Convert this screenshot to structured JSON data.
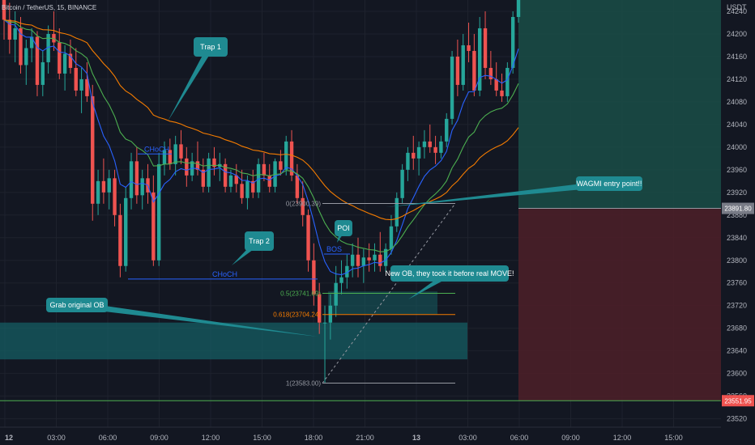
{
  "header": {
    "symbol_title": "Bitcoin / TetherUS, 15, BINANCE",
    "currency": "USDT"
  },
  "chart_data": {
    "type": "candlestick",
    "y_ticks": [
      24240,
      24200,
      24160,
      24120,
      24080,
      24040,
      24000,
      23960,
      23920,
      23880,
      23840,
      23800,
      23760,
      23720,
      23680,
      23640,
      23600,
      23560,
      23520
    ],
    "ylim": [
      23508,
      24260
    ],
    "x_ticks": [
      "12",
      "03:00",
      "06:00",
      "09:00",
      "12:00",
      "15:00",
      "18:00",
      "21:00",
      "13",
      "03:00",
      "06:00",
      "09:00",
      "12:00",
      "15:00"
    ],
    "x_tick_units": [
      0,
      1,
      2,
      3,
      4,
      5,
      6,
      7,
      8,
      9,
      10,
      11,
      12,
      13
    ],
    "xlim": [
      0,
      14.5
    ],
    "candles": [
      [
        24260,
        24285,
        24190,
        24225
      ],
      [
        24225,
        24255,
        24165,
        24190
      ],
      [
        24190,
        24240,
        24150,
        24210
      ],
      [
        24210,
        24230,
        24130,
        24145
      ],
      [
        24145,
        24190,
        24110,
        24175
      ],
      [
        24175,
        24210,
        24150,
        24195
      ],
      [
        24195,
        24205,
        24090,
        24110
      ],
      [
        24110,
        24170,
        24090,
        24150
      ],
      [
        24150,
        24215,
        24130,
        24200
      ],
      [
        24200,
        24240,
        24170,
        24185
      ],
      [
        24185,
        24210,
        24120,
        24130
      ],
      [
        24130,
        24180,
        24100,
        24165
      ],
      [
        24165,
        24190,
        24130,
        24140
      ],
      [
        24140,
        24175,
        24090,
        24100
      ],
      [
        24100,
        24140,
        24060,
        24120
      ],
      [
        24120,
        24150,
        24080,
        24090
      ],
      [
        24090,
        24110,
        23870,
        23900
      ],
      [
        23900,
        23960,
        23880,
        23940
      ],
      [
        23940,
        23980,
        23900,
        23920
      ],
      [
        23920,
        23960,
        23890,
        23945
      ],
      [
        23945,
        23960,
        23860,
        23880
      ],
      [
        23880,
        23900,
        23770,
        23790
      ],
      [
        23790,
        23930,
        23780,
        23910
      ],
      [
        23910,
        23990,
        23890,
        23975
      ],
      [
        23975,
        24000,
        23900,
        23915
      ],
      [
        23915,
        23960,
        23890,
        23945
      ],
      [
        23945,
        23970,
        23900,
        23920
      ],
      [
        23920,
        23950,
        23790,
        23800
      ],
      [
        23800,
        23990,
        23790,
        23970
      ],
      [
        23970,
        24010,
        23950,
        23995
      ],
      [
        23995,
        24015,
        23960,
        23970
      ],
      [
        23970,
        24020,
        23950,
        24005
      ],
      [
        24005,
        24030,
        23970,
        23980
      ],
      [
        23980,
        24000,
        23930,
        23950
      ],
      [
        23950,
        23990,
        23940,
        23975
      ],
      [
        23975,
        24010,
        23950,
        23960
      ],
      [
        23960,
        23980,
        23920,
        23930
      ],
      [
        23930,
        23990,
        23920,
        23980
      ],
      [
        23980,
        24000,
        23950,
        23965
      ],
      [
        23965,
        23990,
        23940,
        23970
      ],
      [
        23970,
        23980,
        23920,
        23930
      ],
      [
        23930,
        23960,
        23920,
        23950
      ],
      [
        23950,
        23970,
        23920,
        23935
      ],
      [
        23935,
        23960,
        23900,
        23910
      ],
      [
        23910,
        23950,
        23890,
        23940
      ],
      [
        23940,
        23960,
        23910,
        23920
      ],
      [
        23920,
        23980,
        23910,
        23970
      ],
      [
        23970,
        23990,
        23940,
        23950
      ],
      [
        23950,
        23970,
        23920,
        23930
      ],
      [
        23930,
        23980,
        23920,
        23975
      ],
      [
        23975,
        23995,
        23950,
        23960
      ],
      [
        23960,
        24020,
        23950,
        24010
      ],
      [
        24010,
        24030,
        23940,
        23950
      ],
      [
        23950,
        23970,
        23900,
        23910
      ],
      [
        23910,
        23940,
        23860,
        23880
      ],
      [
        23880,
        23890,
        23780,
        23800
      ],
      [
        23800,
        23830,
        23720,
        23740
      ],
      [
        23740,
        23760,
        23670,
        23690
      ],
      [
        23690,
        23720,
        23583,
        23690
      ],
      [
        23690,
        23740,
        23660,
        23720
      ],
      [
        23720,
        23790,
        23700,
        23760
      ],
      [
        23760,
        23800,
        23740,
        23770
      ],
      [
        23770,
        23810,
        23750,
        23790
      ],
      [
        23790,
        23830,
        23770,
        23810
      ],
      [
        23810,
        23840,
        23770,
        23790
      ],
      [
        23790,
        23820,
        23760,
        23805
      ],
      [
        23805,
        23830,
        23780,
        23800
      ],
      [
        23800,
        23830,
        23780,
        23810
      ],
      [
        23810,
        23850,
        23780,
        23790
      ],
      [
        23790,
        23830,
        23780,
        23820
      ],
      [
        23820,
        23880,
        23810,
        23860
      ],
      [
        23860,
        23920,
        23850,
        23910
      ],
      [
        23910,
        23970,
        23900,
        23960
      ],
      [
        23960,
        24000,
        23940,
        23990
      ],
      [
        23990,
        24020,
        23960,
        23980
      ],
      [
        23980,
        24010,
        23950,
        24000
      ],
      [
        24000,
        24030,
        23980,
        24010
      ],
      [
        24010,
        24040,
        23990,
        24000
      ],
      [
        24000,
        24020,
        23970,
        23990
      ],
      [
        23990,
        24020,
        23980,
        24010
      ],
      [
        24010,
        24060,
        24000,
        24050
      ],
      [
        24050,
        24170,
        24040,
        24160
      ],
      [
        24160,
        24190,
        24090,
        24110
      ],
      [
        24110,
        24200,
        24100,
        24180
      ],
      [
        24180,
        24220,
        24150,
        24170
      ],
      [
        24170,
        24200,
        24090,
        24100
      ],
      [
        24100,
        24230,
        24090,
        24210
      ],
      [
        24210,
        24240,
        24120,
        24140
      ],
      [
        24140,
        24170,
        24110,
        24120
      ],
      [
        24120,
        24150,
        24090,
        24100
      ],
      [
        24100,
        24130,
        24080,
        24090
      ],
      [
        24090,
        24150,
        24080,
        24140
      ],
      [
        24140,
        24240,
        24130,
        24230
      ],
      [
        24230,
        24290,
        24220,
        24280
      ]
    ],
    "annotations": {
      "callouts": [
        "Trap 1",
        "Trap 2",
        "Grab original OB",
        "POI",
        "New OB, they took it before real MOVE!",
        "WAGMI entry point!!"
      ],
      "structure": [
        "CHoCH",
        "CHoCH",
        "BOS"
      ],
      "fib": [
        {
          "label": "0(23900.39)",
          "value": 23900.39
        },
        {
          "label": "0.5(23741.69)",
          "value": 23741.69
        },
        {
          "label": "0.618(23704.24)",
          "value": 23704.24
        },
        {
          "label": "1(23583.00)",
          "value": 23583.0
        }
      ],
      "order_blocks": [
        {
          "name": "original OB",
          "top": 23690,
          "bottom": 23625
        },
        {
          "name": "new OB",
          "top": 23745,
          "bottom": 23705
        }
      ],
      "position": {
        "entry": 23891.8,
        "target": 24260,
        "stop": 23551.95
      }
    },
    "price_labels": {
      "entry": "23891.80",
      "stop": "23551.95"
    },
    "colors": {
      "background": "#131722",
      "up": "#26a69a",
      "down": "#ef5350",
      "ma_fast": "#2962ff",
      "ma_mid": "#4caf50",
      "ma_slow": "#f57c00",
      "callout": "#1f8a91",
      "ob_zone": "#155e63",
      "profit_zone": "#1a4a45",
      "loss_zone": "#4a1f28",
      "fib_0": "#9598a1",
      "fib_05": "#4caf50",
      "fib_0618": "#f57c00"
    }
  }
}
